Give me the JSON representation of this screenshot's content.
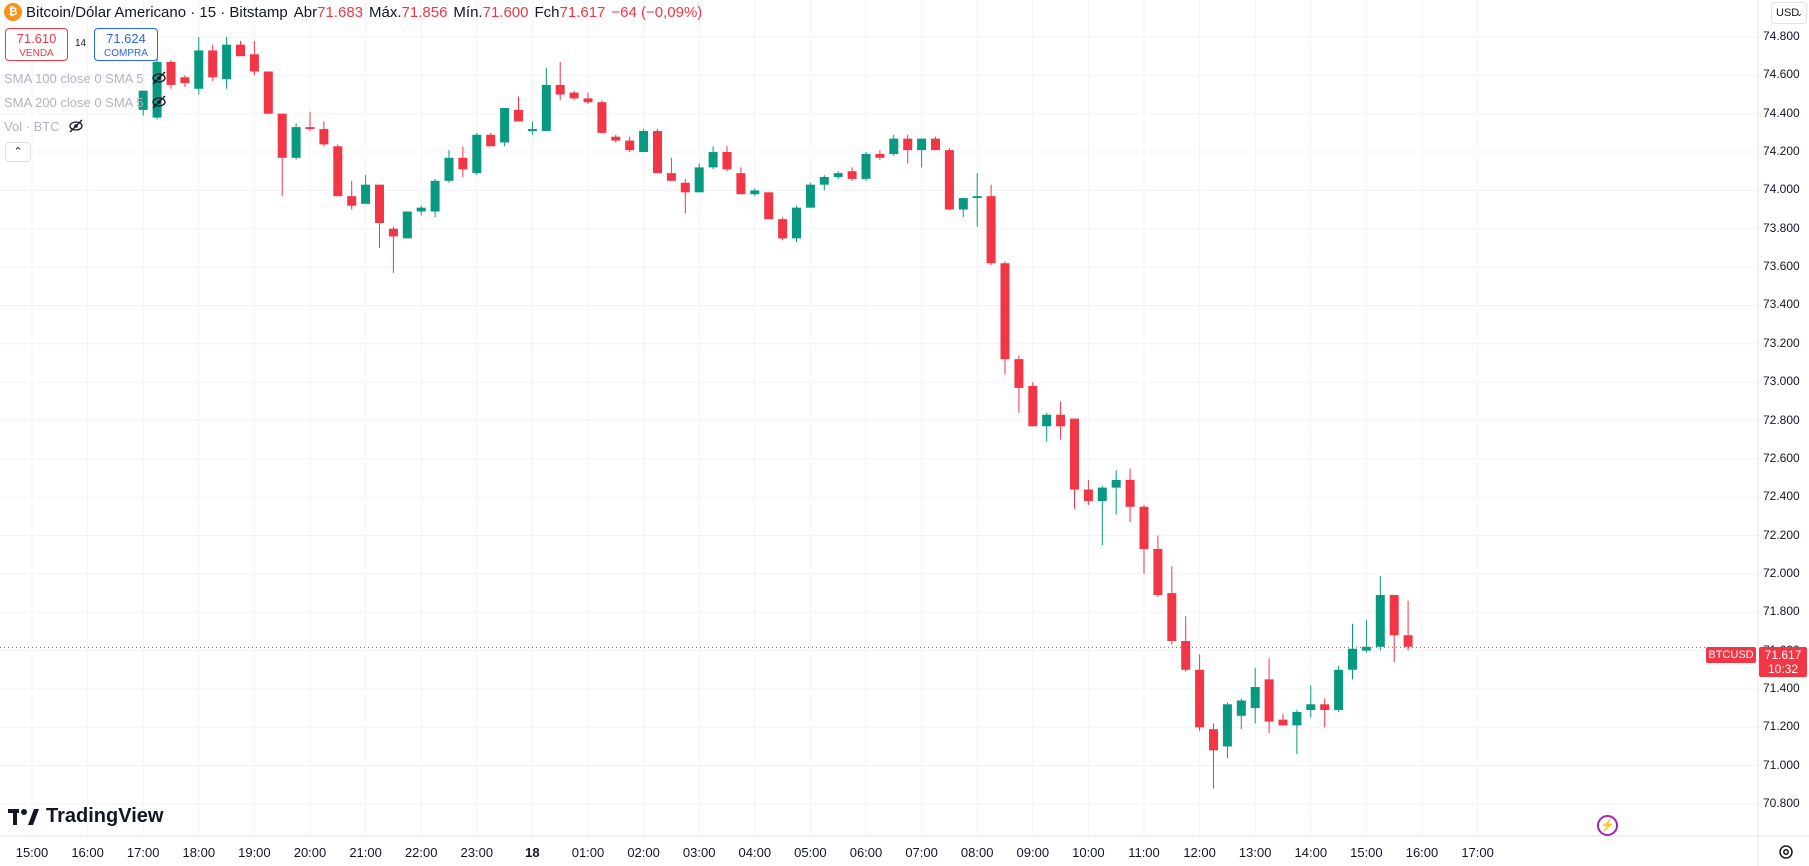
{
  "header": {
    "title": "Bitcoin/Dólar Americano · 15 · Bitstamp",
    "symbol_icon": "₿",
    "open_label": "Abr",
    "open_value": "71.683",
    "high_label": "Máx.",
    "high_value": "71.856",
    "low_label": "Mín.",
    "low_value": "71.600",
    "close_label": "Fch",
    "close_value": "71.617",
    "change": "−64 (−0,09%)"
  },
  "trade": {
    "sell_price": "71.610",
    "sell_label": "VENDA",
    "buy_price": "71.624",
    "buy_label": "COMPRA",
    "spread": "14"
  },
  "indicators": [
    {
      "label": "SMA 100 close 0 SMA 5",
      "icon": "eye-off-icon"
    },
    {
      "label": "SMA 200 close 0 SMA 5",
      "icon": "eye-off-icon"
    },
    {
      "label": "Vol · BTC",
      "icon": "eye-off-icon"
    }
  ],
  "collapse_icon": "chevron-up-icon",
  "currency": "USD",
  "current": {
    "symbol": "BTCUSD",
    "price": "71.617",
    "countdown": "10:32"
  },
  "logo_text": "TradingView",
  "colors": {
    "up": "#089981",
    "down": "#f23645",
    "grid": "#f0f3fa",
    "accent": "#2962ff"
  },
  "chart_data": {
    "type": "candlestick",
    "interval_minutes": 15,
    "y_ticks": [
      "74.800",
      "74.600",
      "74.400",
      "74.200",
      "74.000",
      "73.800",
      "73.600",
      "73.400",
      "73.200",
      "73.000",
      "72.800",
      "72.600",
      "72.400",
      "72.200",
      "72.000",
      "71.800",
      "71.600",
      "71.400",
      "71.200",
      "71.000",
      "70.800"
    ],
    "ylim": [
      70.75,
      74.85
    ],
    "x_ticks": [
      "15:00",
      "16:00",
      "17:00",
      "18:00",
      "19:00",
      "20:00",
      "21:00",
      "22:00",
      "23:00",
      "18",
      "01:00",
      "02:00",
      "03:00",
      "04:00",
      "05:00",
      "06:00",
      "07:00",
      "08:00",
      "09:00",
      "10:00",
      "11:00",
      "12:00",
      "13:00",
      "14:00",
      "15:00",
      "16:00",
      "17:00"
    ],
    "candles": [
      {
        "t": "17:00",
        "o": 74.42,
        "h": 74.52,
        "l": 74.39,
        "c": 74.52
      },
      {
        "t": "17:15",
        "o": 74.38,
        "h": 74.7,
        "l": 74.37,
        "c": 74.67
      },
      {
        "t": "17:30",
        "o": 74.67,
        "h": 74.68,
        "l": 74.53,
        "c": 74.55
      },
      {
        "t": "17:45",
        "o": 74.59,
        "h": 74.6,
        "l": 74.54,
        "c": 74.56
      },
      {
        "t": "18:00",
        "o": 74.53,
        "h": 74.8,
        "l": 74.5,
        "c": 74.73
      },
      {
        "t": "18:15",
        "o": 74.73,
        "h": 74.76,
        "l": 74.57,
        "c": 74.59
      },
      {
        "t": "18:30",
        "o": 74.58,
        "h": 74.8,
        "l": 74.53,
        "c": 74.76
      },
      {
        "t": "18:45",
        "o": 74.76,
        "h": 74.78,
        "l": 74.7,
        "c": 74.7
      },
      {
        "t": "19:00",
        "o": 74.71,
        "h": 74.78,
        "l": 74.6,
        "c": 74.62
      },
      {
        "t": "19:15",
        "o": 74.62,
        "h": 74.62,
        "l": 74.4,
        "c": 74.4
      },
      {
        "t": "19:30",
        "o": 74.4,
        "h": 74.4,
        "l": 73.97,
        "c": 74.17
      },
      {
        "t": "19:45",
        "o": 74.17,
        "h": 74.35,
        "l": 74.16,
        "c": 74.33
      },
      {
        "t": "20:00",
        "o": 74.33,
        "h": 74.41,
        "l": 74.31,
        "c": 74.32
      },
      {
        "t": "20:15",
        "o": 74.32,
        "h": 74.36,
        "l": 74.23,
        "c": 74.24
      },
      {
        "t": "20:30",
        "o": 74.23,
        "h": 74.24,
        "l": 73.97,
        "c": 73.97
      },
      {
        "t": "20:45",
        "o": 73.97,
        "h": 74.05,
        "l": 73.9,
        "c": 73.92
      },
      {
        "t": "21:00",
        "o": 73.93,
        "h": 74.08,
        "l": 73.93,
        "c": 74.03
      },
      {
        "t": "21:15",
        "o": 74.03,
        "h": 74.03,
        "l": 73.7,
        "c": 73.83
      },
      {
        "t": "21:30",
        "o": 73.8,
        "h": 73.81,
        "l": 73.57,
        "c": 73.76
      },
      {
        "t": "21:45",
        "o": 73.75,
        "h": 73.89,
        "l": 73.75,
        "c": 73.89
      },
      {
        "t": "22:00",
        "o": 73.89,
        "h": 73.92,
        "l": 73.87,
        "c": 73.91
      },
      {
        "t": "22:15",
        "o": 73.89,
        "h": 74.06,
        "l": 73.86,
        "c": 74.05
      },
      {
        "t": "22:30",
        "o": 74.05,
        "h": 74.21,
        "l": 74.04,
        "c": 74.17
      },
      {
        "t": "22:45",
        "o": 74.17,
        "h": 74.23,
        "l": 74.07,
        "c": 74.11
      },
      {
        "t": "23:00",
        "o": 74.09,
        "h": 74.3,
        "l": 74.08,
        "c": 74.29
      },
      {
        "t": "23:15",
        "o": 74.29,
        "h": 74.3,
        "l": 74.23,
        "c": 74.23
      },
      {
        "t": "23:30",
        "o": 74.25,
        "h": 74.43,
        "l": 74.23,
        "c": 74.43
      },
      {
        "t": "23:45",
        "o": 74.42,
        "h": 74.49,
        "l": 74.36,
        "c": 74.36
      },
      {
        "t": "00:00",
        "o": 74.31,
        "h": 74.36,
        "l": 74.29,
        "c": 74.32
      },
      {
        "t": "00:15",
        "o": 74.31,
        "h": 74.64,
        "l": 74.31,
        "c": 74.55
      },
      {
        "t": "00:30",
        "o": 74.55,
        "h": 74.67,
        "l": 74.47,
        "c": 74.5
      },
      {
        "t": "00:45",
        "o": 74.51,
        "h": 74.52,
        "l": 74.47,
        "c": 74.48
      },
      {
        "t": "01:00",
        "o": 74.48,
        "h": 74.51,
        "l": 74.45,
        "c": 74.46
      },
      {
        "t": "01:15",
        "o": 74.46,
        "h": 74.47,
        "l": 74.3,
        "c": 74.3
      },
      {
        "t": "01:30",
        "o": 74.28,
        "h": 74.29,
        "l": 74.25,
        "c": 74.26
      },
      {
        "t": "01:45",
        "o": 74.26,
        "h": 74.28,
        "l": 74.2,
        "c": 74.21
      },
      {
        "t": "02:00",
        "o": 74.2,
        "h": 74.32,
        "l": 74.2,
        "c": 74.31
      },
      {
        "t": "02:15",
        "o": 74.31,
        "h": 74.32,
        "l": 74.09,
        "c": 74.09
      },
      {
        "t": "02:30",
        "o": 74.09,
        "h": 74.17,
        "l": 74.05,
        "c": 74.05
      },
      {
        "t": "02:45",
        "o": 74.04,
        "h": 74.06,
        "l": 73.88,
        "c": 73.99
      },
      {
        "t": "03:00",
        "o": 73.99,
        "h": 74.14,
        "l": 73.99,
        "c": 74.12
      },
      {
        "t": "03:15",
        "o": 74.12,
        "h": 74.23,
        "l": 74.11,
        "c": 74.2
      },
      {
        "t": "03:30",
        "o": 74.2,
        "h": 74.23,
        "l": 74.1,
        "c": 74.11
      },
      {
        "t": "03:45",
        "o": 74.09,
        "h": 74.12,
        "l": 73.98,
        "c": 73.98
      },
      {
        "t": "04:00",
        "o": 73.98,
        "h": 74.01,
        "l": 73.97,
        "c": 74.0
      },
      {
        "t": "04:15",
        "o": 73.99,
        "h": 73.99,
        "l": 73.85,
        "c": 73.85
      },
      {
        "t": "04:30",
        "o": 73.85,
        "h": 73.86,
        "l": 73.74,
        "c": 73.75
      },
      {
        "t": "04:45",
        "o": 73.75,
        "h": 73.92,
        "l": 73.73,
        "c": 73.91
      },
      {
        "t": "05:00",
        "o": 73.91,
        "h": 74.04,
        "l": 73.91,
        "c": 74.03
      },
      {
        "t": "05:15",
        "o": 74.03,
        "h": 74.08,
        "l": 74.0,
        "c": 74.07
      },
      {
        "t": "05:30",
        "o": 74.07,
        "h": 74.1,
        "l": 74.06,
        "c": 74.09
      },
      {
        "t": "05:45",
        "o": 74.1,
        "h": 74.12,
        "l": 74.05,
        "c": 74.06
      },
      {
        "t": "06:00",
        "o": 74.06,
        "h": 74.2,
        "l": 74.05,
        "c": 74.19
      },
      {
        "t": "06:15",
        "o": 74.19,
        "h": 74.21,
        "l": 74.16,
        "c": 74.17
      },
      {
        "t": "06:30",
        "o": 74.19,
        "h": 74.29,
        "l": 74.18,
        "c": 74.27
      },
      {
        "t": "06:45",
        "o": 74.27,
        "h": 74.29,
        "l": 74.14,
        "c": 74.21
      },
      {
        "t": "07:00",
        "o": 74.21,
        "h": 74.27,
        "l": 74.12,
        "c": 74.27
      },
      {
        "t": "07:15",
        "o": 74.27,
        "h": 74.28,
        "l": 74.21,
        "c": 74.21
      },
      {
        "t": "07:30",
        "o": 74.21,
        "h": 74.22,
        "l": 73.9,
        "c": 73.9
      },
      {
        "t": "07:45",
        "o": 73.9,
        "h": 73.96,
        "l": 73.86,
        "c": 73.96
      },
      {
        "t": "08:00",
        "o": 73.96,
        "h": 74.09,
        "l": 73.81,
        "c": 73.97
      },
      {
        "t": "08:15",
        "o": 73.97,
        "h": 74.03,
        "l": 73.61,
        "c": 73.62
      },
      {
        "t": "08:30",
        "o": 73.62,
        "h": 73.63,
        "l": 73.04,
        "c": 73.12
      },
      {
        "t": "08:45",
        "o": 73.12,
        "h": 73.14,
        "l": 72.84,
        "c": 72.97
      },
      {
        "t": "09:00",
        "o": 72.98,
        "h": 73.0,
        "l": 72.8,
        "c": 72.77
      },
      {
        "t": "09:15",
        "o": 72.77,
        "h": 72.84,
        "l": 72.69,
        "c": 72.83
      },
      {
        "t": "09:30",
        "o": 72.83,
        "h": 72.9,
        "l": 72.7,
        "c": 72.77
      },
      {
        "t": "09:45",
        "o": 72.81,
        "h": 72.81,
        "l": 72.34,
        "c": 72.44
      },
      {
        "t": "10:00",
        "o": 72.44,
        "h": 72.49,
        "l": 72.36,
        "c": 72.38
      },
      {
        "t": "10:15",
        "o": 72.38,
        "h": 72.46,
        "l": 72.15,
        "c": 72.45
      },
      {
        "t": "10:30",
        "o": 72.45,
        "h": 72.54,
        "l": 72.31,
        "c": 72.49
      },
      {
        "t": "10:45",
        "o": 72.49,
        "h": 72.55,
        "l": 72.27,
        "c": 72.35
      },
      {
        "t": "11:00",
        "o": 72.35,
        "h": 72.36,
        "l": 72.0,
        "c": 72.13
      },
      {
        "t": "11:15",
        "o": 72.13,
        "h": 72.2,
        "l": 71.88,
        "c": 71.89
      },
      {
        "t": "11:30",
        "o": 71.9,
        "h": 72.04,
        "l": 71.63,
        "c": 71.65
      },
      {
        "t": "11:45",
        "o": 71.65,
        "h": 71.78,
        "l": 71.49,
        "c": 71.5
      },
      {
        "t": "12:00",
        "o": 71.5,
        "h": 71.58,
        "l": 71.18,
        "c": 71.2
      },
      {
        "t": "12:15",
        "o": 71.19,
        "h": 71.22,
        "l": 70.88,
        "c": 71.08
      },
      {
        "t": "12:30",
        "o": 71.1,
        "h": 71.33,
        "l": 71.04,
        "c": 71.32
      },
      {
        "t": "12:45",
        "o": 71.26,
        "h": 71.35,
        "l": 71.19,
        "c": 71.34
      },
      {
        "t": "13:00",
        "o": 71.3,
        "h": 71.51,
        "l": 71.22,
        "c": 71.41
      },
      {
        "t": "13:15",
        "o": 71.45,
        "h": 71.56,
        "l": 71.17,
        "c": 71.23
      },
      {
        "t": "13:30",
        "o": 71.24,
        "h": 71.27,
        "l": 71.21,
        "c": 71.21
      },
      {
        "t": "13:45",
        "o": 71.21,
        "h": 71.29,
        "l": 71.06,
        "c": 71.28
      },
      {
        "t": "14:00",
        "o": 71.29,
        "h": 71.42,
        "l": 71.25,
        "c": 71.32
      },
      {
        "t": "14:15",
        "o": 71.32,
        "h": 71.35,
        "l": 71.2,
        "c": 71.29
      },
      {
        "t": "14:30",
        "o": 71.29,
        "h": 71.52,
        "l": 71.28,
        "c": 71.5
      },
      {
        "t": "14:45",
        "o": 71.5,
        "h": 71.74,
        "l": 71.45,
        "c": 71.61
      },
      {
        "t": "15:00",
        "o": 71.6,
        "h": 71.76,
        "l": 71.59,
        "c": 71.62
      },
      {
        "t": "15:15",
        "o": 71.62,
        "h": 71.99,
        "l": 71.6,
        "c": 71.89
      },
      {
        "t": "15:30",
        "o": 71.89,
        "h": 71.89,
        "l": 71.54,
        "c": 71.68
      },
      {
        "t": "15:45",
        "o": 71.68,
        "h": 71.86,
        "l": 71.6,
        "c": 71.62
      }
    ]
  }
}
